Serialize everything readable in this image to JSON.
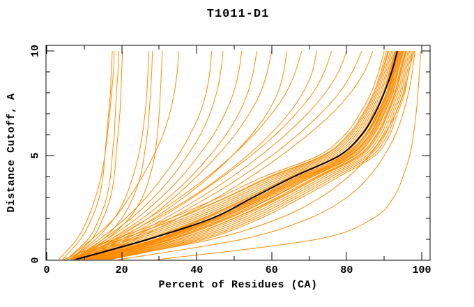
{
  "chart_data": {
    "type": "line",
    "title": "T1011-D1",
    "xlabel": "Percent of Residues (CA)",
    "ylabel": "Distance Cutoff, A",
    "xlim": [
      0,
      102
    ],
    "ylim": [
      0,
      10.3
    ],
    "x_ticks_major": [
      0,
      20,
      40,
      60,
      80,
      100
    ],
    "x_ticks_minor": [
      10,
      30,
      50,
      70,
      90
    ],
    "y_ticks_major": [
      0,
      5,
      10
    ],
    "y_ticks_minor": [
      1,
      2,
      3,
      4,
      6,
      7,
      8,
      9
    ],
    "grid": false,
    "legend": null,
    "colors": {
      "model": "#ff8c00",
      "highlight": "#000000",
      "axis": "#000000"
    },
    "y_samples": [
      0,
      1,
      2,
      3,
      4,
      5,
      6,
      7,
      8,
      9,
      10
    ],
    "series": [
      {
        "name": "model-01",
        "role": "model",
        "width": 1,
        "xs": [
          4,
          18,
          33,
          46,
          58,
          72.5,
          79.5,
          83.5,
          86.5,
          88.5,
          90
        ]
      },
      {
        "name": "model-02",
        "role": "model",
        "width": 1,
        "xs": [
          5,
          19.8,
          34.8,
          47.7,
          59.5,
          73.6,
          80.4,
          84.3,
          87.2,
          89.1,
          90.6
        ]
      },
      {
        "name": "model-03",
        "role": "model",
        "width": 1,
        "xs": [
          5.8,
          21.6,
          36.6,
          49.3,
          61,
          74.8,
          81.3,
          85,
          87.9,
          89.7,
          91.2
        ]
      },
      {
        "name": "model-04",
        "role": "model",
        "width": 1,
        "xs": [
          6.4,
          22.8,
          37.8,
          50.4,
          62,
          75.5,
          81.9,
          85.5,
          88.3,
          90.1,
          91.6
        ]
      },
      {
        "name": "model-05",
        "role": "model",
        "width": 1,
        "xs": [
          7,
          24,
          39,
          51.5,
          63,
          76.3,
          82.5,
          86,
          88.8,
          90.5,
          92
        ]
      },
      {
        "name": "model-06",
        "role": "model",
        "width": 1,
        "xs": [
          7.6,
          25.2,
          40.2,
          52.6,
          64,
          77,
          83.1,
          86.5,
          89.2,
          90.9,
          92.4
        ]
      },
      {
        "name": "model-07",
        "role": "model",
        "width": 1,
        "xs": [
          8.2,
          26.4,
          41.4,
          53.7,
          65,
          77.8,
          83.7,
          87,
          89.7,
          91.3,
          92.8
        ]
      },
      {
        "name": "model-08",
        "role": "model",
        "width": 1,
        "xs": [
          8.8,
          27.6,
          42.6,
          54.8,
          66,
          78.5,
          84.3,
          87.5,
          90.1,
          91.7,
          93.2
        ]
      },
      {
        "name": "model-09",
        "role": "model",
        "width": 1,
        "xs": [
          9.4,
          28.8,
          43.8,
          55.9,
          67,
          79.3,
          84.9,
          88,
          90.6,
          92.1,
          93.6
        ]
      },
      {
        "name": "model-10",
        "role": "model",
        "width": 1,
        "xs": [
          10,
          30,
          45,
          57,
          68,
          80,
          85.5,
          88.5,
          91,
          92.5,
          94
        ]
      },
      {
        "name": "model-11",
        "role": "model",
        "width": 1,
        "xs": [
          10.6,
          31.2,
          46.2,
          58.1,
          69,
          80.8,
          86.1,
          89,
          91.5,
          92.9,
          94.4
        ]
      },
      {
        "name": "model-12",
        "role": "model",
        "width": 1,
        "xs": [
          11.2,
          32.4,
          47.4,
          59.2,
          70,
          81.5,
          86.7,
          89.5,
          91.9,
          93.3,
          94.8
        ]
      },
      {
        "name": "model-13",
        "role": "model",
        "width": 1,
        "xs": [
          11.8,
          33.6,
          48.6,
          60.3,
          71,
          82.3,
          87.3,
          90,
          92.4,
          93.7,
          95.2
        ]
      },
      {
        "name": "model-14",
        "role": "model",
        "width": 1,
        "xs": [
          12.4,
          34.8,
          49.8,
          61.4,
          72,
          83,
          87.9,
          90.5,
          92.8,
          94.1,
          95.6
        ]
      },
      {
        "name": "model-15",
        "role": "model",
        "width": 1,
        "xs": [
          13,
          36,
          51,
          62.5,
          73,
          83.8,
          88.5,
          91,
          93.3,
          94.5,
          96
        ]
      },
      {
        "name": "model-16",
        "role": "model",
        "width": 1,
        "xs": [
          13.6,
          37.2,
          52.2,
          63.6,
          74,
          84.5,
          89.1,
          91.5,
          93.7,
          94.9,
          96.4
        ]
      },
      {
        "name": "model-17",
        "role": "model",
        "width": 1,
        "xs": [
          14.2,
          38.4,
          53.4,
          64.7,
          75,
          85.3,
          89.7,
          92,
          94.2,
          95.3,
          96.8
        ]
      },
      {
        "name": "model-18",
        "role": "model",
        "width": 1,
        "xs": [
          14.8,
          39.6,
          54.6,
          65.8,
          76,
          86,
          90.3,
          92.5,
          94.6,
          95.7,
          97.2
        ]
      },
      {
        "name": "model-19",
        "role": "model",
        "width": 1,
        "xs": [
          15.4,
          40.8,
          55.8,
          66.9,
          77,
          86.8,
          90.9,
          93,
          95.1,
          96.1,
          97.6
        ]
      },
      {
        "name": "model-20",
        "role": "model",
        "width": 1,
        "xs": [
          16,
          42,
          57,
          68,
          78,
          87.5,
          91.5,
          93.5,
          95.5,
          96.5,
          98
        ]
      },
      {
        "name": "model-21",
        "role": "model",
        "width": 1,
        "xs": [
          9,
          29,
          44,
          56.5,
          67.5,
          79,
          85,
          88.2,
          90.8,
          92.3,
          93.8
        ]
      },
      {
        "name": "model-22",
        "role": "model",
        "width": 1,
        "xs": [
          10.5,
          30.5,
          45.5,
          57.5,
          68.5,
          80.5,
          86,
          88.8,
          91.2,
          92.7,
          94.2
        ]
      },
      {
        "name": "model-23",
        "role": "model",
        "width": 1,
        "xs": [
          11,
          31.5,
          46.5,
          58.5,
          69.5,
          81,
          86.4,
          89.2,
          91.7,
          93,
          94.6
        ]
      },
      {
        "name": "model-24",
        "role": "model",
        "width": 1,
        "xs": [
          12,
          33,
          48,
          60,
          70.5,
          82,
          87,
          89.8,
          92.2,
          93.5,
          95
        ]
      },
      {
        "name": "model-25",
        "role": "model",
        "width": 1,
        "xs": [
          9.8,
          29.5,
          44.5,
          56,
          67,
          79.6,
          85.2,
          88.4,
          90.9,
          92.4,
          93.9
        ]
      },
      {
        "name": "model-26",
        "role": "model",
        "width": 1,
        "xs": [
          13.2,
          35,
          50,
          62,
          72.5,
          83.4,
          88.2,
          90.8,
          93,
          94.3,
          95.8
        ]
      },
      {
        "name": "model-27",
        "role": "model",
        "width": 1,
        "xs": [
          8.5,
          27,
          42,
          54,
          65.5,
          78,
          84,
          87.2,
          89.9,
          91.5,
          93
        ]
      },
      {
        "name": "model-28",
        "role": "model",
        "width": 1,
        "xs": [
          6,
          20,
          35,
          48,
          60,
          74,
          80.8,
          84.6,
          87.5,
          89.4,
          91
        ]
      },
      {
        "name": "model-29",
        "role": "model",
        "width": 1,
        "xs": [
          4,
          9,
          12,
          14,
          15,
          15.5,
          16,
          16.5,
          17,
          17.2,
          17.5
        ]
      },
      {
        "name": "model-30",
        "role": "model",
        "width": 1,
        "xs": [
          5,
          11,
          14,
          16,
          17,
          17.5,
          18,
          18.3,
          18.6,
          19,
          19.2
        ]
      },
      {
        "name": "model-31",
        "role": "model",
        "width": 1,
        "xs": [
          6,
          12,
          15,
          17,
          18,
          18.5,
          19,
          19.5,
          19.8,
          20,
          20.2
        ]
      },
      {
        "name": "model-32",
        "role": "model",
        "width": 1,
        "xs": [
          3,
          8,
          11,
          13,
          14.5,
          15.5,
          16.2,
          16.8,
          17.3,
          17.8,
          18
        ]
      },
      {
        "name": "model-33",
        "role": "model",
        "width": 1,
        "xs": [
          6,
          13,
          18,
          21,
          23,
          24.5,
          25.5,
          26.2,
          26.7,
          27,
          27.2
        ]
      },
      {
        "name": "model-34",
        "role": "model",
        "width": 1,
        "xs": [
          7,
          15,
          20,
          23,
          25,
          26,
          26.8,
          27.3,
          27.7,
          28,
          28.2
        ]
      },
      {
        "name": "model-35",
        "role": "model",
        "width": 1,
        "xs": [
          8,
          16,
          22,
          25.5,
          27.5,
          28.8,
          29.5,
          30,
          30.3,
          30.6,
          30.8
        ]
      },
      {
        "name": "model-36",
        "role": "model",
        "width": 1,
        "xs": [
          5,
          12,
          18,
          22,
          25.5,
          28.5,
          31,
          32.8,
          34,
          34.8,
          35.2
        ]
      },
      {
        "name": "model-37",
        "role": "model",
        "width": 1,
        "xs": [
          6,
          14,
          21,
          26.5,
          31,
          35,
          38.2,
          40.8,
          42.5,
          43.5,
          44
        ]
      },
      {
        "name": "model-38",
        "role": "model",
        "width": 1,
        "xs": [
          7,
          16,
          24,
          30.5,
          36,
          40.5,
          44.5,
          47.5,
          49.8,
          51.2,
          52
        ]
      },
      {
        "name": "model-39",
        "role": "model",
        "width": 1,
        "xs": [
          8,
          18,
          27,
          34,
          40,
          45.5,
          50.2,
          54,
          57,
          58.8,
          60
        ]
      },
      {
        "name": "model-40",
        "role": "model",
        "width": 1,
        "xs": [
          6,
          17,
          27,
          35.5,
          43,
          49.5,
          55.2,
          60,
          63.8,
          66.3,
          68
        ]
      },
      {
        "name": "model-41",
        "role": "model",
        "width": 1,
        "xs": [
          9,
          20,
          30,
          39,
          47,
          54.5,
          61,
          66.5,
          71,
          74,
          76
        ]
      },
      {
        "name": "model-42",
        "role": "model",
        "width": 1,
        "xs": [
          10,
          22,
          33,
          43,
          52,
          60,
          67,
          73,
          78,
          81.5,
          84
        ]
      },
      {
        "name": "model-43",
        "role": "model",
        "width": 1,
        "xs": [
          6.5,
          15,
          22.5,
          28.5,
          33.5,
          37.5,
          41,
          43.5,
          45.3,
          46.4,
          47
        ]
      },
      {
        "name": "model-44",
        "role": "model",
        "width": 1,
        "xs": [
          7.5,
          17,
          25.5,
          32.5,
          38.5,
          43.5,
          47.8,
          51.2,
          53.6,
          55.1,
          56
        ]
      },
      {
        "name": "model-45",
        "role": "model",
        "width": 1,
        "xs": [
          8.5,
          19,
          28.5,
          36.5,
          43.5,
          49.5,
          54.6,
          58.7,
          61.6,
          63.2,
          64
        ]
      },
      {
        "name": "model-46",
        "role": "model",
        "width": 1,
        "xs": [
          7,
          18.5,
          29,
          38.5,
          46.5,
          53.5,
          59.5,
          64.5,
          68.3,
          70.8,
          72
        ]
      },
      {
        "name": "model-47",
        "role": "model",
        "width": 1,
        "xs": [
          9,
          21,
          31.5,
          41,
          49.5,
          57,
          63.7,
          69.5,
          74.3,
          77.8,
          80
        ]
      },
      {
        "name": "model-48",
        "role": "model",
        "width": 1,
        "xs": [
          11,
          23.5,
          35,
          45.5,
          54.5,
          62.5,
          69.7,
          76,
          81,
          84.7,
          87
        ]
      },
      {
        "name": "model-49",
        "role": "model",
        "width": 1,
        "xs": [
          18,
          52,
          70,
          80,
          86,
          90,
          93,
          95,
          96.5,
          97.5,
          98.2
        ]
      },
      {
        "name": "model-50",
        "role": "model",
        "width": 1,
        "xs": [
          28,
          72,
          87,
          92.5,
          95,
          96.8,
          97.8,
          98.5,
          99,
          99.4,
          99.7
        ]
      },
      {
        "name": "model-51",
        "role": "model",
        "width": 1,
        "xs": [
          14,
          44,
          62,
          73,
          80.5,
          86,
          90,
          93,
          95.2,
          96.6,
          97.6
        ]
      },
      {
        "name": "highlighted-model",
        "role": "highlight",
        "width": 2,
        "xs": [
          7,
          27,
          44,
          55,
          66,
          78,
          84,
          87.5,
          90,
          92,
          93.5
        ]
      }
    ]
  }
}
